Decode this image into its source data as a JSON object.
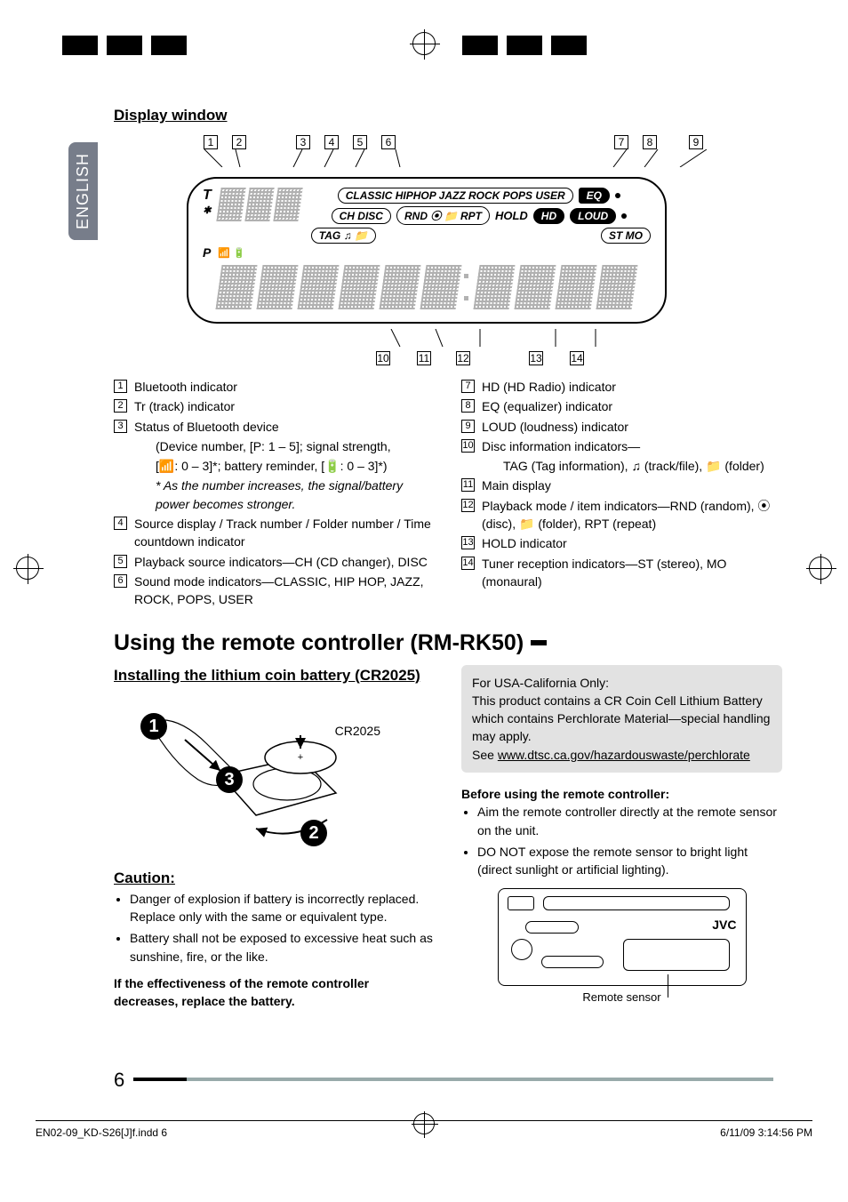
{
  "language_tab": "ENGLISH",
  "display_window_heading": "Display window",
  "callouts_top": [
    "1",
    "2",
    "3",
    "4",
    "5",
    "6",
    "7",
    "8",
    "9"
  ],
  "callouts_bottom": [
    "10",
    "11",
    "12",
    "13",
    "14"
  ],
  "lcd": {
    "modes_row": "CLASSIC HIPHOP JAZZ ROCK POPS USER",
    "eq": "EQ",
    "ch_disc": "CH DISC",
    "rnd": "RND",
    "rpt": "RPT",
    "hold": "HOLD",
    "hd": "HD",
    "loud": "LOUD",
    "tag": "TAG",
    "stmo": "ST MO",
    "t": "T",
    "p": "P"
  },
  "defs_left": [
    {
      "n": "1",
      "t": "Bluetooth indicator"
    },
    {
      "n": "2",
      "t": "Tr (track) indicator"
    },
    {
      "n": "3",
      "t": "Status of Bluetooth device"
    },
    {
      "n": "",
      "t": "(Device number, [P: 1 – 5]; signal strength,",
      "indent": true
    },
    {
      "n": "",
      "t": "[📶: 0 – 3]*; battery reminder, [🔋: 0 – 3]*)",
      "indent": true
    },
    {
      "n": "",
      "t": "* As the number increases, the signal/battery power becomes stronger.",
      "indent": true,
      "italic": true
    },
    {
      "n": "4",
      "t": "Source display / Track number / Folder number / Time countdown indicator"
    },
    {
      "n": "5",
      "t": "Playback source indicators—CH (CD changer), DISC"
    },
    {
      "n": "6",
      "t": "Sound mode indicators—CLASSIC, HIP HOP, JAZZ, ROCK, POPS, USER"
    }
  ],
  "defs_right": [
    {
      "n": "7",
      "t": "HD (HD Radio) indicator"
    },
    {
      "n": "8",
      "t": "EQ (equalizer) indicator"
    },
    {
      "n": "9",
      "t": "LOUD (loudness) indicator"
    },
    {
      "n": "10",
      "t": "Disc information indicators—"
    },
    {
      "n": "",
      "t": "TAG (Tag information), ♫ (track/file), 📁 (folder)",
      "indent": true
    },
    {
      "n": "11",
      "t": "Main display"
    },
    {
      "n": "12",
      "t": "Playback mode / item indicators—RND (random), ⦿ (disc), 📁 (folder), RPT (repeat)"
    },
    {
      "n": "13",
      "t": "HOLD indicator"
    },
    {
      "n": "14",
      "t": "Tuner reception indicators—ST (stereo), MO (monaural)"
    }
  ],
  "section_title": "Using the remote controller (RM-RK50)",
  "install_heading": "Installing the lithium coin battery (CR2025)",
  "battery_label": "CR2025",
  "caution_heading": "Caution:",
  "caution_items": [
    "Danger of explosion if battery is incorrectly replaced. Replace only with the same or equivalent type.",
    "Battery shall not be exposed to excessive heat such as sunshine, fire, or the like."
  ],
  "effectiveness_note": "If the effectiveness of the remote controller decreases, replace the battery.",
  "california_box": {
    "line1": "For USA-California Only:",
    "line2": "This product contains a CR Coin Cell Lithium Battery which contains Perchlorate Material—special handling may apply.",
    "line3_prefix": "See ",
    "link": "www.dtsc.ca.gov/hazardouswaste/perchlorate"
  },
  "before_heading": "Before using the remote controller:",
  "before_items": [
    "Aim the remote controller directly at the remote sensor on the unit.",
    "DO NOT expose the remote sensor to bright light (direct sunlight or artificial lighting)."
  ],
  "unit_brand": "JVC",
  "remote_sensor_label": "Remote sensor",
  "page_number": "6",
  "footer_left": "EN02-09_KD-S26[J]f.indd   6",
  "footer_right": "6/11/09   3:14:56 PM"
}
